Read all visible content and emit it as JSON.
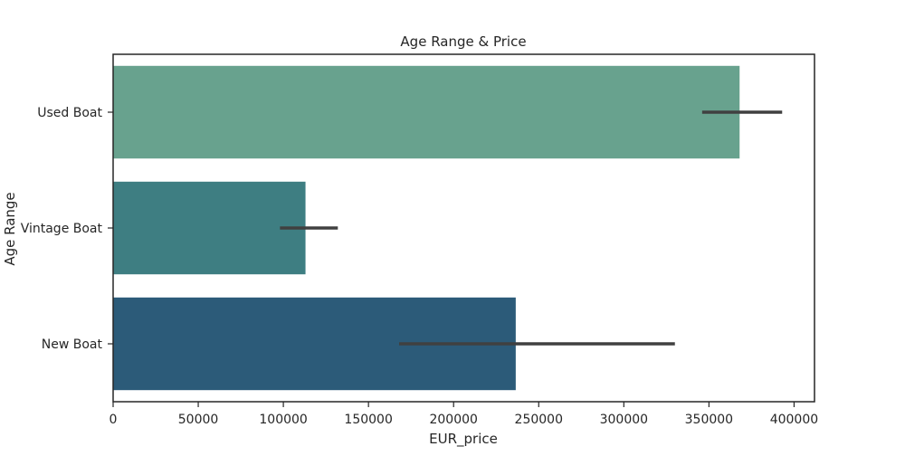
{
  "chart_data": {
    "type": "bar",
    "orientation": "horizontal",
    "title": "Age Range & Price",
    "xlabel": "EUR_price",
    "ylabel": "Age Range",
    "xlim": [
      0,
      412000
    ],
    "xticks": [
      0,
      50000,
      100000,
      150000,
      200000,
      250000,
      300000,
      350000,
      400000
    ],
    "grid": false,
    "categories": [
      "Used Boat",
      "Vintage Boat",
      "New Boat"
    ],
    "values": [
      368000,
      113000,
      236500
    ],
    "error_bars": [
      [
        346000,
        393000
      ],
      [
        98000,
        132000
      ],
      [
        168000,
        330000
      ]
    ],
    "colors": [
      "#68a28e",
      "#3e7e82",
      "#2c5b79"
    ],
    "error_bar_color": "#404040"
  }
}
